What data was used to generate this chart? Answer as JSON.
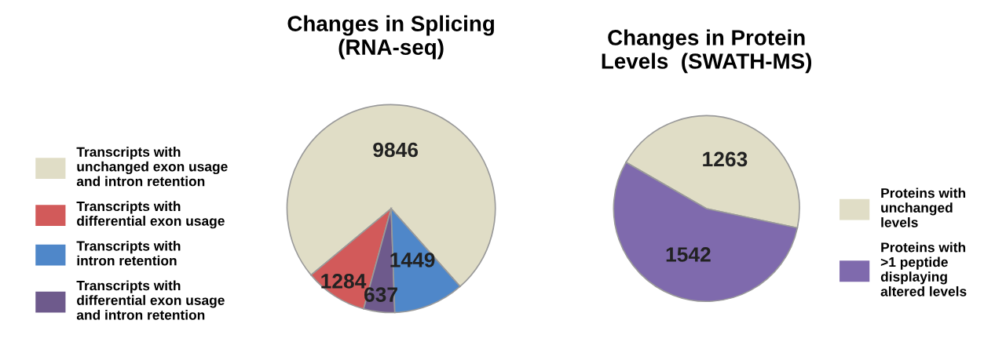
{
  "chart_data": [
    {
      "type": "pie",
      "title": "Changes in Splicing\n(RNA-seq)",
      "categories": [
        "Transcripts with\nunchanged exon usage\nand intron retention",
        "Transcripts with\ndifferential exon usage",
        "Transcripts with\nintron retention",
        "Transcripts with\ndifferential exon usage\nand intron retention"
      ],
      "values": [
        9846,
        1284,
        1449,
        637
      ],
      "colors": [
        "#e0ddc6",
        "#d25a5a",
        "#4f87c9",
        "#6e5a8c"
      ],
      "data_labels": true,
      "legend": "left"
    },
    {
      "type": "pie",
      "title": "Changes in Protein\nLevels  (SWATH-MS)",
      "categories": [
        "Proteins with\nunchanged\nlevels",
        "Proteins with\n>1 peptide\ndisplaying\naltered levels"
      ],
      "values": [
        1263,
        1542
      ],
      "colors": [
        "#e0ddc6",
        "#7f6aad"
      ],
      "data_labels": true,
      "legend": "right"
    }
  ]
}
